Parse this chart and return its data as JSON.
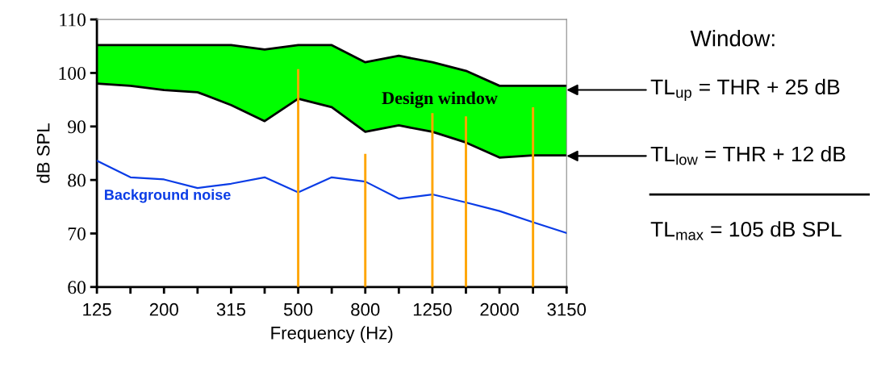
{
  "chart_data": {
    "type": "line",
    "xlabel": "Frequency (Hz)",
    "ylabel": "dB SPL",
    "categories": [
      "125",
      null,
      "200",
      null,
      "315",
      null,
      "500",
      null,
      "800",
      null,
      "1250",
      null,
      "2000",
      null,
      "3150"
    ],
    "ylim": [
      60,
      110
    ],
    "yticks": [
      60,
      70,
      80,
      90,
      100,
      110
    ],
    "grid": false,
    "series": [
      {
        "name": "Design window",
        "type": "area",
        "color": "#00ff00",
        "values": [
          105.2,
          105.2,
          105.2,
          105.2,
          105.2,
          104.4,
          105.2,
          105.2,
          102,
          103.2,
          102,
          100.4,
          97.6,
          97.6,
          97.6
        ]
      },
      {
        "type": "area",
        "color": "#ffffff",
        "values": [
          98,
          97.6,
          96.8,
          96.4,
          94,
          91,
          95.2,
          93.6,
          89,
          90.2,
          89,
          87,
          84.2,
          84.6,
          84.6
        ]
      },
      {
        "name": "Background noise",
        "color": "#0a3ce6",
        "values": [
          83.6,
          80.5,
          80.1,
          78.5,
          79.3,
          80.5,
          77.7,
          80.5,
          79.7,
          76.5,
          77.3,
          75.8,
          74.2,
          72.1,
          70.1
        ]
      },
      {
        "type": "bar",
        "color": "#ffa500",
        "values": [
          null,
          null,
          null,
          null,
          null,
          null,
          100.7,
          null,
          84.9,
          null,
          92.5,
          91.9,
          null,
          93.6,
          null
        ]
      }
    ],
    "annotations": [
      "Window:",
      "TL$_{up}$ = THR + 25 dB",
      "TL$_{low}$ = THR + 12 dB",
      "TL$_{max}$ = 105 dB SPL"
    ]
  }
}
